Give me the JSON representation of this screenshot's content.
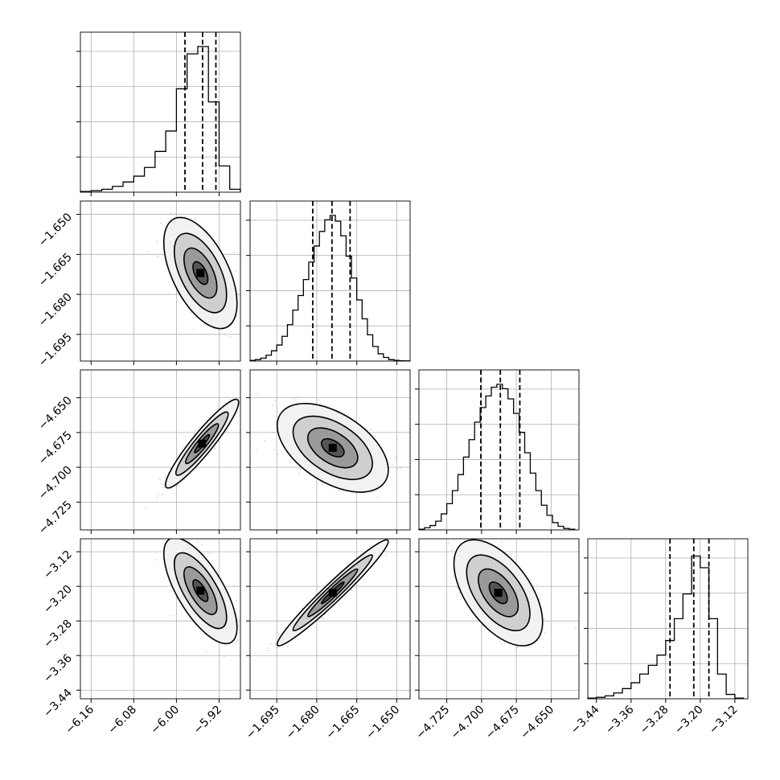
{
  "colors": {
    "line": "#000000",
    "grid": "#b0b0b0",
    "scatter": "#808080",
    "background": "#ffffff"
  },
  "chart_data": {
    "type": "corner",
    "parameters": 4,
    "grid": true,
    "axes": [
      {
        "index": 0,
        "range": [
          -6.18,
          -5.88
        ],
        "ticks": [
          -6.16,
          -6.08,
          -6.0,
          -5.92
        ],
        "tick_labels": [
          "−6.16",
          "−6.08",
          "−6.00",
          "−5.92"
        ],
        "quantiles": [
          -5.984,
          -5.951,
          -5.926
        ],
        "hist_edges": [
          -6.18,
          -6.16,
          -6.14,
          -6.12,
          -6.1,
          -6.08,
          -6.06,
          -6.04,
          -6.02,
          -6.0,
          -5.98,
          -5.96,
          -5.94,
          -5.92,
          -5.9,
          -5.88
        ],
        "hist_values": [
          0.005,
          0.01,
          0.02,
          0.04,
          0.07,
          0.11,
          0.17,
          0.28,
          0.42,
          0.71,
          0.95,
          1.0,
          0.62,
          0.18,
          0.02
        ]
      },
      {
        "index": 1,
        "range": [
          -1.705,
          -1.645
        ],
        "ticks": [
          -1.695,
          -1.68,
          -1.665,
          -1.65
        ],
        "tick_labels": [
          "−1.695",
          "−1.680",
          "−1.665",
          "−1.650"
        ],
        "quantiles": [
          -1.6815,
          -1.6743,
          -1.6675
        ],
        "hist_edges": [
          -1.705,
          -1.703,
          -1.701,
          -1.699,
          -1.697,
          -1.695,
          -1.693,
          -1.691,
          -1.689,
          -1.687,
          -1.685,
          -1.683,
          -1.681,
          -1.679,
          -1.677,
          -1.675,
          -1.673,
          -1.671,
          -1.669,
          -1.667,
          -1.665,
          -1.663,
          -1.661,
          -1.659,
          -1.657,
          -1.655,
          -1.653,
          -1.651,
          -1.649,
          -1.647,
          -1.645
        ],
        "hist_values": [
          0.005,
          0.01,
          0.02,
          0.04,
          0.07,
          0.11,
          0.17,
          0.25,
          0.35,
          0.45,
          0.56,
          0.68,
          0.79,
          0.89,
          0.97,
          1.0,
          0.96,
          0.86,
          0.72,
          0.57,
          0.42,
          0.29,
          0.18,
          0.1,
          0.05,
          0.025,
          0.01,
          0.005,
          0.002,
          0.001
        ]
      },
      {
        "index": 2,
        "range": [
          -4.745,
          -4.63
        ],
        "ticks": [
          -4.725,
          -4.7,
          -4.675,
          -4.65
        ],
        "tick_labels": [
          "−4.725",
          "−4.700",
          "−4.675",
          "−4.650"
        ],
        "quantiles": [
          -4.7005,
          -4.6865,
          -4.6725
        ],
        "hist_edges": [
          -4.745,
          -4.741,
          -4.737,
          -4.733,
          -4.729,
          -4.725,
          -4.721,
          -4.717,
          -4.713,
          -4.709,
          -4.705,
          -4.701,
          -4.697,
          -4.693,
          -4.689,
          -4.685,
          -4.681,
          -4.677,
          -4.673,
          -4.669,
          -4.665,
          -4.661,
          -4.657,
          -4.653,
          -4.649,
          -4.645,
          -4.641,
          -4.637,
          -4.633
        ],
        "hist_values": [
          0.005,
          0.015,
          0.03,
          0.06,
          0.11,
          0.18,
          0.27,
          0.38,
          0.5,
          0.62,
          0.74,
          0.84,
          0.92,
          0.98,
          1.0,
          0.97,
          0.9,
          0.8,
          0.67,
          0.53,
          0.39,
          0.27,
          0.17,
          0.1,
          0.05,
          0.025,
          0.01,
          0.005
        ]
      },
      {
        "index": 3,
        "range": [
          -3.46,
          -3.09
        ],
        "ticks": [
          -3.44,
          -3.36,
          -3.28,
          -3.2,
          -3.12
        ],
        "tick_labels": [
          "−3.44",
          "−3.36",
          "−3.28",
          "−3.20",
          "−3.12"
        ],
        "quantiles": [
          -3.27,
          -3.215,
          -3.18
        ],
        "hist_edges": [
          -3.46,
          -3.44,
          -3.42,
          -3.4,
          -3.38,
          -3.36,
          -3.34,
          -3.32,
          -3.3,
          -3.28,
          -3.26,
          -3.24,
          -3.22,
          -3.2,
          -3.18,
          -3.16,
          -3.14,
          -3.12,
          -3.1
        ],
        "hist_values": [
          0.005,
          0.01,
          0.02,
          0.04,
          0.07,
          0.11,
          0.17,
          0.23,
          0.3,
          0.4,
          0.55,
          0.72,
          0.98,
          0.9,
          0.55,
          0.17,
          0.03,
          0.005
        ]
      }
    ],
    "pairs": [
      {
        "x": 0,
        "y": 1,
        "mean": [
          -5.955,
          -1.672
        ],
        "sd": [
          0.028,
          0.0085
        ],
        "corr": -0.55
      },
      {
        "x": 0,
        "y": 2,
        "mean": [
          -5.952,
          -4.683
        ],
        "sd": [
          0.028,
          0.013
        ],
        "corr": 0.93
      },
      {
        "x": 1,
        "y": 2,
        "mean": [
          -1.674,
          -4.686
        ],
        "sd": [
          0.0085,
          0.013
        ],
        "corr": -0.5
      },
      {
        "x": 0,
        "y": 3,
        "mean": [
          -5.955,
          -3.21
        ],
        "sd": [
          0.028,
          0.05
        ],
        "corr": -0.7
      },
      {
        "x": 1,
        "y": 3,
        "mean": [
          -1.674,
          -3.215
        ],
        "sd": [
          0.0085,
          0.05
        ],
        "corr": 0.97
      },
      {
        "x": 2,
        "y": 3,
        "mean": [
          -4.688,
          -3.215
        ],
        "sd": [
          0.013,
          0.05
        ],
        "corr": -0.55
      }
    ]
  }
}
